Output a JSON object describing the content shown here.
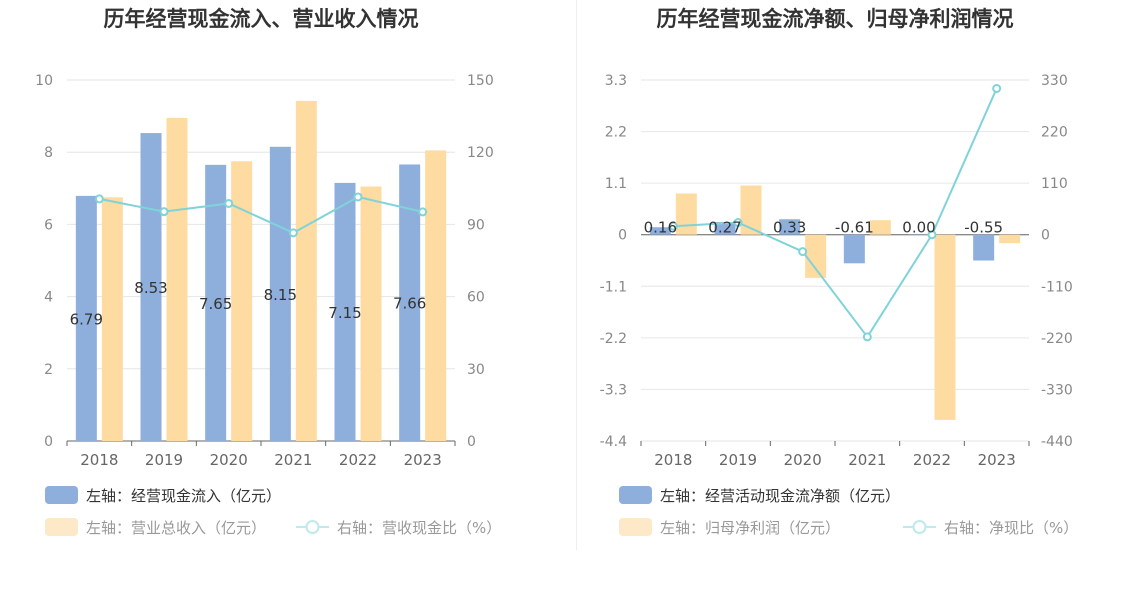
{
  "chart_data": [
    {
      "type": "bar",
      "title": "历年经营现金流入、营业收入情况",
      "categories": [
        "2018",
        "2019",
        "2020",
        "2021",
        "2022",
        "2023"
      ],
      "left_axis": {
        "ylim": [
          0,
          10
        ],
        "ticks": [
          "0",
          "2",
          "4",
          "6",
          "8",
          "10"
        ]
      },
      "right_axis": {
        "ylim": [
          0,
          150
        ],
        "ticks": [
          "0",
          "30",
          "60",
          "90",
          "120",
          "150"
        ]
      },
      "series": [
        {
          "name": "左轴：经营现金流入（亿元）",
          "type": "bar",
          "axis": "left",
          "values": [
            6.79,
            8.53,
            7.65,
            8.15,
            7.15,
            7.66
          ],
          "labels": [
            "6.79",
            "8.53",
            "7.65",
            "8.15",
            "7.15",
            "7.66"
          ],
          "color": "#8eaedc"
        },
        {
          "name": "左轴：营业总收入（亿元）",
          "type": "bar",
          "axis": "left",
          "values": [
            6.75,
            8.95,
            7.75,
            9.42,
            7.05,
            8.05
          ],
          "color": "#fedba0"
        },
        {
          "name": "右轴：营收现金比（%）",
          "type": "line",
          "axis": "right",
          "values": [
            100.6,
            95.3,
            98.7,
            86.5,
            101.4,
            95.2
          ],
          "color": "#7fd3d9"
        }
      ],
      "grid": true,
      "legend_position": "bottom"
    },
    {
      "type": "bar",
      "title": "历年经营现金流净额、归母净利润情况",
      "categories": [
        "2018",
        "2019",
        "2020",
        "2021",
        "2022",
        "2023"
      ],
      "left_axis": {
        "ylim": [
          -4.4,
          3.3
        ],
        "ticks": [
          "3.3",
          "2.2",
          "1.1",
          "0",
          "-1.1",
          "-2.2",
          "-3.3",
          "-4.4"
        ]
      },
      "right_axis": {
        "ylim": [
          -440,
          330
        ],
        "ticks": [
          "330",
          "220",
          "110",
          "0",
          "-110",
          "-220",
          "-330",
          "-440"
        ]
      },
      "series": [
        {
          "name": "左轴：经营活动现金流净额（亿元）",
          "type": "bar",
          "axis": "left",
          "values": [
            0.16,
            0.27,
            0.33,
            -0.61,
            0.0,
            -0.55
          ],
          "labels": [
            "0.16",
            "0.27",
            "0.33",
            "-0.61",
            "0.00",
            "-0.55"
          ],
          "color": "#8eaedc"
        },
        {
          "name": "左轴：归母净利润（亿元）",
          "type": "bar",
          "axis": "left",
          "values": [
            0.88,
            1.05,
            -0.92,
            0.31,
            -3.95,
            -0.18
          ],
          "color": "#fedba0"
        },
        {
          "name": "右轴：净现比（%）",
          "type": "line",
          "axis": "right",
          "values": [
            18,
            26,
            -36,
            -218,
            0,
            312
          ],
          "color": "#7fd3d9"
        }
      ],
      "grid": true,
      "legend_position": "bottom"
    }
  ]
}
